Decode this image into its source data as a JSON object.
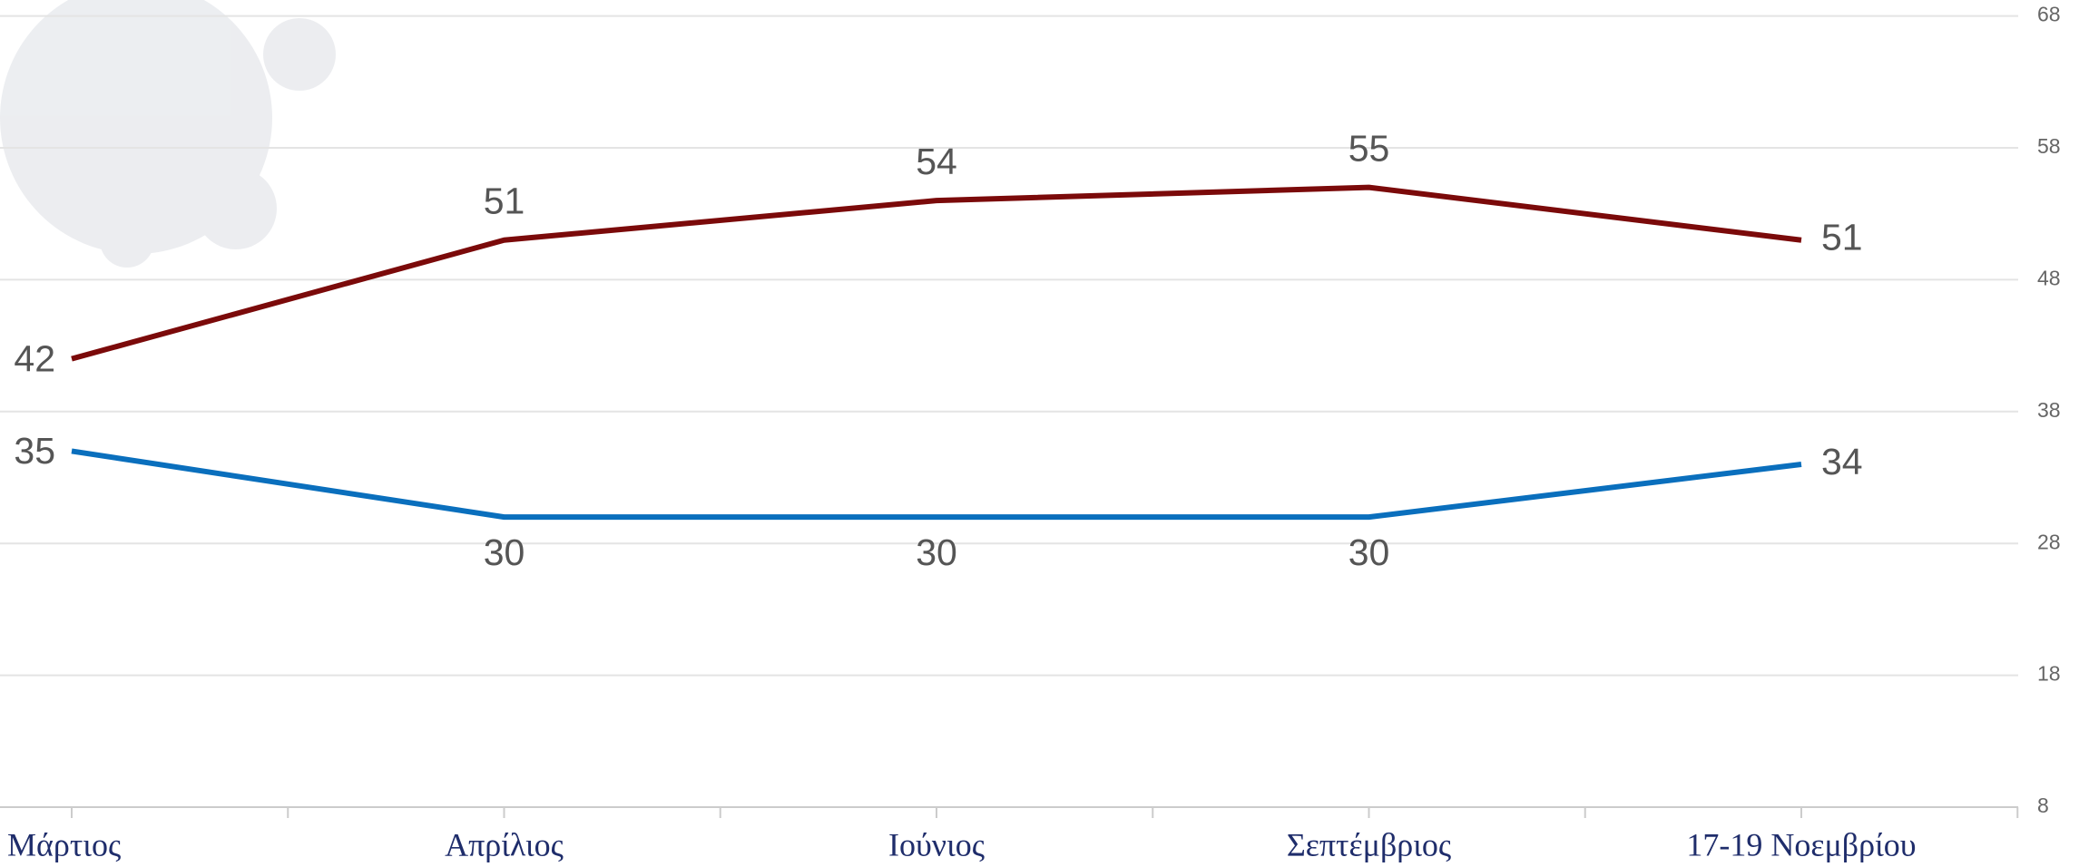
{
  "chart_data": {
    "type": "line",
    "categories": [
      "Μάρτιος",
      "Απρίλιος",
      "Ιούνιος",
      "Σεπτέμβριος",
      "17-19 Νοεμβρίου"
    ],
    "series": [
      {
        "color": "#7b0a0a",
        "values": [
          42,
          51,
          54,
          55,
          51
        ]
      },
      {
        "color": "#0a6fbd",
        "values": [
          35,
          30,
          30,
          30,
          34
        ]
      }
    ],
    "ylim": [
      8,
      68
    ],
    "yticks": [
      8,
      18,
      28,
      38,
      48,
      58,
      68
    ],
    "grid": true
  }
}
